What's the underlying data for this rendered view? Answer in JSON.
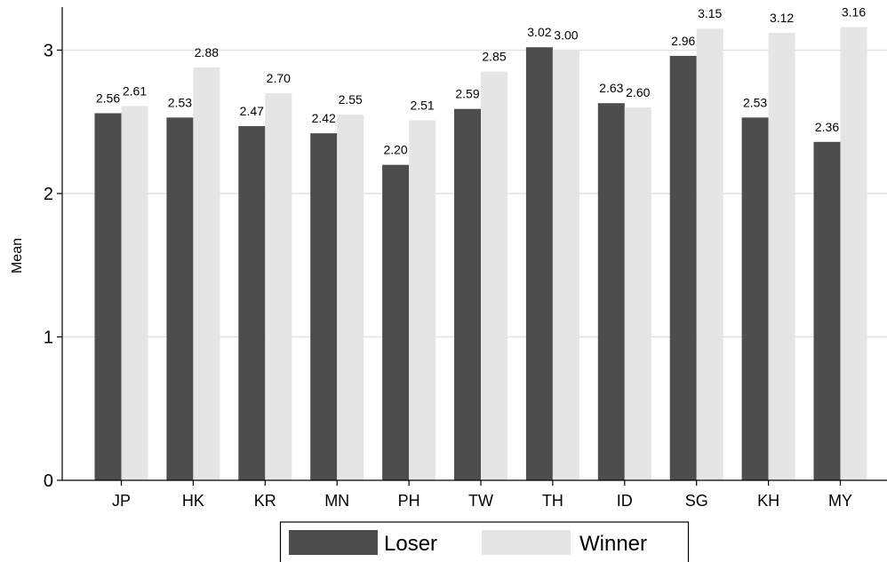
{
  "chart_data": {
    "type": "bar",
    "title": "",
    "xlabel": "",
    "ylabel": "Mean",
    "ylim": [
      0,
      3.3
    ],
    "yticks": [
      0,
      1,
      2,
      3
    ],
    "grid": true,
    "legend_position": "bottom",
    "categories": [
      "JP",
      "HK",
      "KR",
      "MN",
      "PH",
      "TW",
      "TH",
      "ID",
      "SG",
      "KH",
      "MY"
    ],
    "series": [
      {
        "name": "Loser",
        "color": "#4d4d4d",
        "values": [
          2.56,
          2.53,
          2.47,
          2.42,
          2.2,
          2.59,
          3.02,
          2.63,
          2.96,
          2.53,
          2.36
        ],
        "labels": [
          "2.56",
          "2.53",
          "2.47",
          "2.42",
          "2.20",
          "2.59",
          "3.02",
          "2.63",
          "2.96",
          "2.53",
          "2.36"
        ]
      },
      {
        "name": "Winner",
        "color": "#e5e5e5",
        "values": [
          2.61,
          2.88,
          2.7,
          2.55,
          2.51,
          2.85,
          3.0,
          2.6,
          3.15,
          3.12,
          3.16
        ],
        "labels": [
          "2.61",
          "2.88",
          "2.70",
          "2.55",
          "2.51",
          "2.85",
          "3.00",
          "2.60",
          "3.15",
          "3.12",
          "3.16"
        ]
      }
    ]
  }
}
